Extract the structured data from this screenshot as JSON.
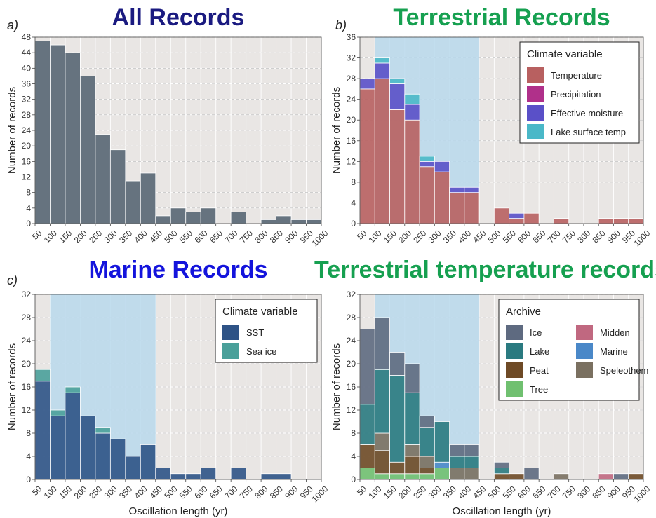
{
  "bins": [
    "50",
    "100",
    "150",
    "200",
    "250",
    "300",
    "350",
    "400",
    "450",
    "500",
    "550",
    "600",
    "650",
    "700",
    "750",
    "800",
    "850",
    "900",
    "950",
    "1000"
  ],
  "chart_data": [
    {
      "type": "bar",
      "letter": "a)",
      "title": "All Records",
      "title_color": "#1a1a80",
      "ylabel": "Number of records",
      "xlabel": "",
      "ylim": [
        0,
        48
      ],
      "yticks": [
        0,
        4,
        8,
        12,
        16,
        20,
        24,
        28,
        32,
        36,
        40,
        44,
        48
      ],
      "highlight": null,
      "stacked": true,
      "series": [
        {
          "color": "#66737f",
          "values": [
            47,
            46,
            44,
            38,
            23,
            19,
            11,
            13,
            2,
            4,
            3,
            4,
            0,
            3,
            0,
            1,
            2,
            1,
            1
          ]
        }
      ],
      "legend": null
    },
    {
      "type": "bar",
      "letter": "b)",
      "title": "Terrestrial Records",
      "title_color": "#16a050",
      "ylabel": "Number of records",
      "xlabel": "",
      "ylim": [
        0,
        36
      ],
      "yticks": [
        0,
        4,
        8,
        12,
        16,
        20,
        24,
        28,
        32,
        36
      ],
      "highlight": [
        100,
        450
      ],
      "stacked": true,
      "series": [
        {
          "name": "Temperature",
          "color": "#b86060",
          "values": [
            26,
            28,
            22,
            20,
            11,
            10,
            6,
            6,
            0,
            3,
            1,
            2,
            0,
            1,
            0,
            0,
            1,
            1,
            1
          ]
        },
        {
          "name": "Precipitation",
          "color": "#b0308a",
          "values": [
            0,
            0,
            0,
            0,
            0,
            0,
            0,
            0,
            0,
            0,
            0,
            0,
            0,
            0,
            0,
            0,
            0,
            0,
            0
          ]
        },
        {
          "name": "Effective moisture",
          "color": "#5a50c8",
          "values": [
            2,
            3,
            5,
            3,
            1,
            2,
            1,
            1,
            0,
            0,
            1,
            0,
            0,
            0,
            0,
            0,
            0,
            0,
            0
          ]
        },
        {
          "name": "Lake surface temp",
          "color": "#4ab8c8",
          "values": [
            0,
            1,
            1,
            2,
            1,
            0,
            0,
            0,
            0,
            0,
            0,
            0,
            0,
            0,
            0,
            0,
            0,
            0,
            0
          ]
        }
      ],
      "legend": {
        "title": "Climate variable",
        "position": "top-right",
        "columns": 1
      }
    },
    {
      "type": "bar",
      "letter": "c)",
      "title": "Marine Records",
      "title_color": "#1414dc",
      "ylabel": "Number of records",
      "xlabel": "Oscillation length (yr)",
      "ylim": [
        0,
        32
      ],
      "yticks": [
        0,
        4,
        8,
        12,
        16,
        20,
        24,
        28,
        32
      ],
      "highlight": [
        100,
        450
      ],
      "stacked": true,
      "series": [
        {
          "name": "SST",
          "color": "#2e5386",
          "values": [
            17,
            11,
            15,
            11,
            8,
            7,
            4,
            6,
            2,
            1,
            1,
            2,
            0,
            2,
            0,
            1,
            1,
            0,
            0
          ]
        },
        {
          "name": "Sea ice",
          "color": "#4aa09a",
          "values": [
            2,
            1,
            1,
            0,
            1,
            0,
            0,
            0,
            0,
            0,
            0,
            0,
            0,
            0,
            0,
            0,
            0,
            0,
            0
          ]
        }
      ],
      "legend": {
        "title": "Climate variable",
        "position": "top-right",
        "columns": 1
      }
    },
    {
      "type": "bar",
      "letter": "",
      "title": "Terrestrial temperature records",
      "title_color": "#16a050",
      "ylabel": "Number of records",
      "xlabel": "Oscillation length (yr)",
      "ylim": [
        0,
        32
      ],
      "yticks": [
        0,
        4,
        8,
        12,
        16,
        20,
        24,
        28,
        32
      ],
      "highlight": [
        100,
        450
      ],
      "stacked": true,
      "series": [
        {
          "name": "Tree",
          "color": "#70c070",
          "values": [
            2,
            1,
            1,
            1,
            1,
            2,
            0,
            0,
            0,
            0,
            0,
            0,
            0,
            0,
            0,
            0,
            0,
            0,
            0
          ]
        },
        {
          "name": "Peat",
          "color": "#6e4a26",
          "values": [
            4,
            4,
            2,
            3,
            1,
            0,
            0,
            0,
            0,
            1,
            1,
            0,
            0,
            0,
            0,
            0,
            0,
            0,
            1
          ]
        },
        {
          "name": "Speleothem",
          "color": "#7a7060",
          "values": [
            0,
            3,
            0,
            2,
            2,
            0,
            2,
            2,
            0,
            0,
            0,
            0,
            0,
            1,
            0,
            0,
            0,
            0,
            0
          ]
        },
        {
          "name": "Marine",
          "color": "#4a88c8",
          "values": [
            0,
            0,
            0,
            0,
            0,
            1,
            0,
            0,
            0,
            0,
            0,
            0,
            0,
            0,
            0,
            0,
            0,
            0,
            0
          ]
        },
        {
          "name": "Lake",
          "color": "#2a7a80",
          "values": [
            7,
            11,
            15,
            9,
            5,
            7,
            2,
            2,
            0,
            1,
            0,
            0,
            0,
            0,
            0,
            0,
            0,
            0,
            0
          ]
        },
        {
          "name": "Midden",
          "color": "#c06880",
          "values": [
            0,
            0,
            0,
            0,
            0,
            0,
            0,
            0,
            0,
            0,
            0,
            0,
            0,
            0,
            0,
            0,
            1,
            0,
            0
          ]
        },
        {
          "name": "Ice",
          "color": "#5e6a80",
          "values": [
            13,
            9,
            4,
            5,
            2,
            0,
            2,
            2,
            0,
            1,
            0,
            2,
            0,
            0,
            0,
            0,
            0,
            1,
            0
          ]
        }
      ],
      "legend": {
        "title": "Archive",
        "position": "top-right",
        "columns": 2,
        "order": [
          "Ice",
          "Midden",
          "Lake",
          "Marine",
          "Peat",
          "Speleothem",
          "Tree"
        ]
      }
    }
  ]
}
